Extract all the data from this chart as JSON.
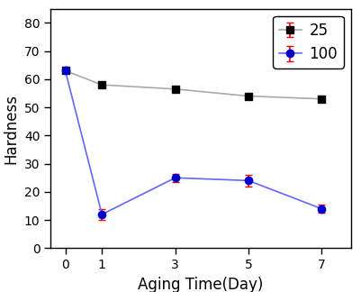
{
  "x": [
    0,
    1,
    3,
    5,
    7
  ],
  "series_25_y": [
    63,
    58,
    56.5,
    54,
    53
  ],
  "series_25_yerr": [
    0.8,
    0.8,
    0.6,
    0.8,
    0.6
  ],
  "series_100_y": [
    63,
    12,
    25,
    24,
    14
  ],
  "series_100_yerr": [
    0.8,
    2.0,
    1.5,
    2.0,
    1.5
  ],
  "series_25_line_color": "#aaaaaa",
  "series_25_marker_color": "#000000",
  "series_100_line_color": "#6666ff",
  "series_100_marker_color": "#0000cc",
  "errorbar_color": "#ff0000",
  "xlabel": "Aging Time(Day)",
  "ylabel": "Hardness",
  "ylim": [
    0,
    85
  ],
  "xlim": [
    -0.4,
    7.8
  ],
  "xticks": [
    0,
    1,
    3,
    5,
    7
  ],
  "yticks": [
    0,
    10,
    20,
    30,
    40,
    50,
    60,
    70,
    80
  ],
  "legend_labels": [
    "25",
    "100"
  ],
  "legend_loc": "upper right",
  "figsize": [
    4.02,
    3.24
  ],
  "dpi": 100,
  "marker_size": 6,
  "line_width": 1.2,
  "capsize": 3,
  "xlabel_fontsize": 12,
  "ylabel_fontsize": 12,
  "legend_fontsize": 12,
  "tick_fontsize": 10
}
